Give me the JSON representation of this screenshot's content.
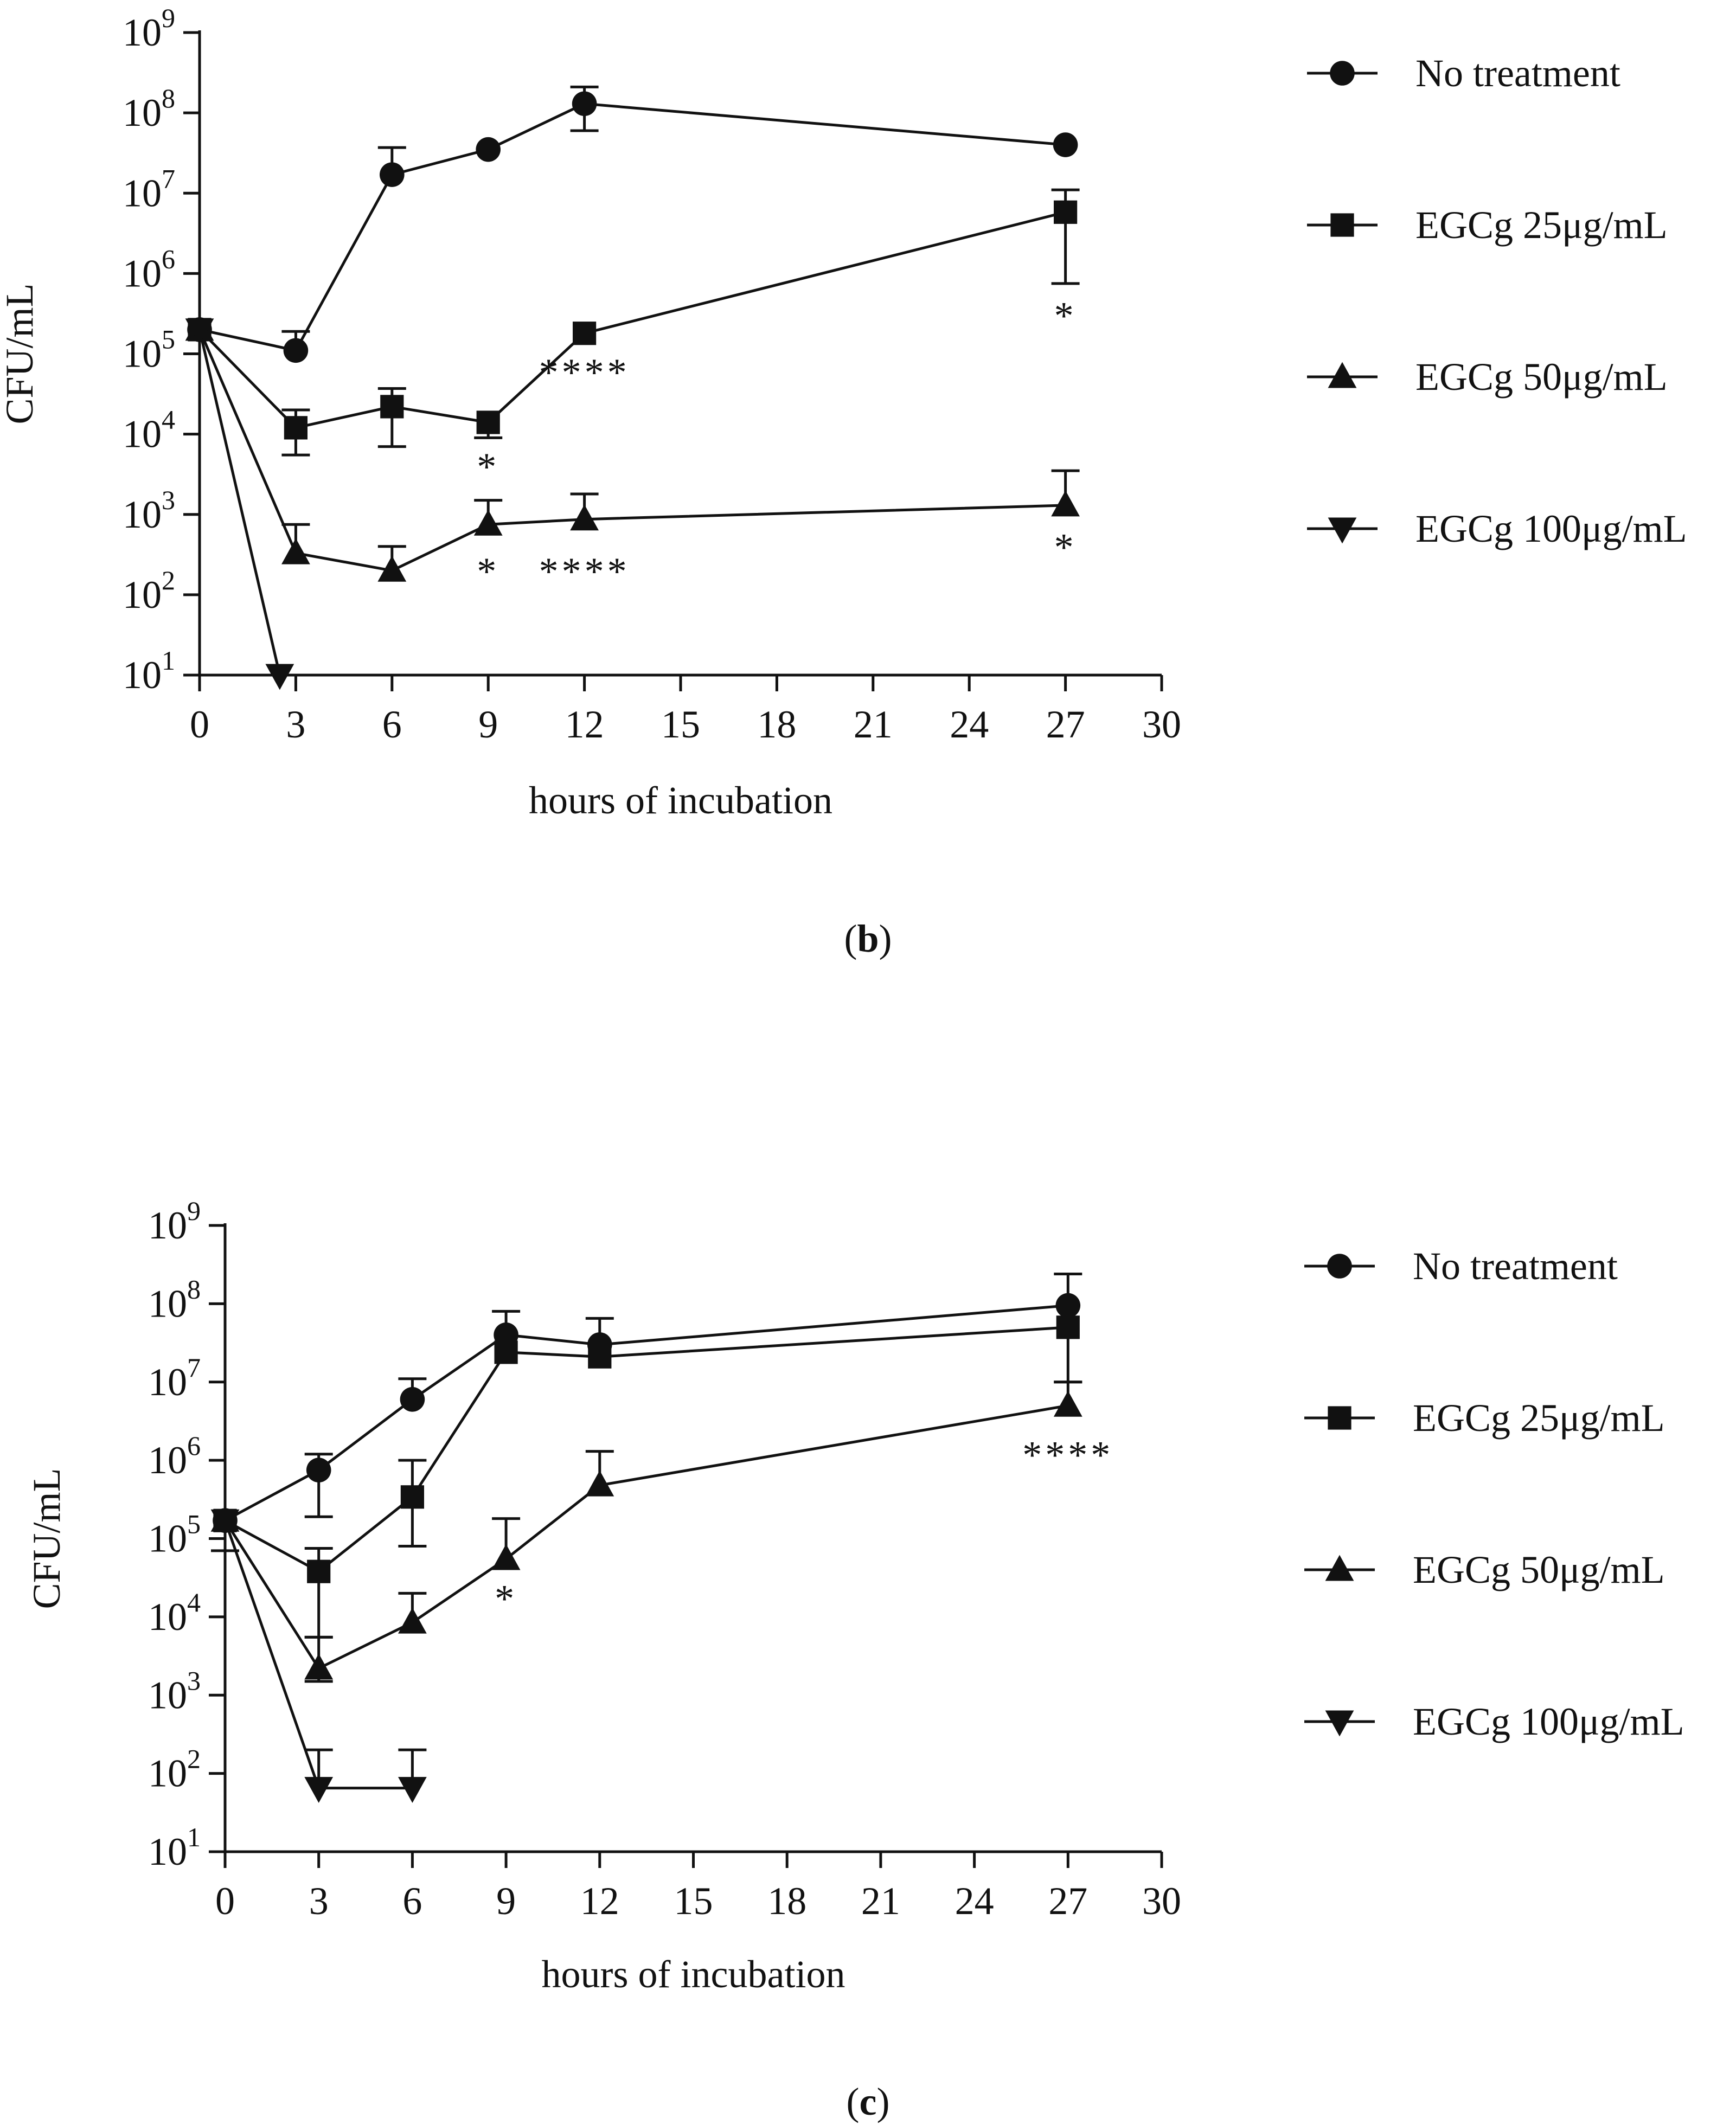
{
  "chart_data": [
    {
      "id": "b",
      "type": "line",
      "panel_label": "b",
      "xlabel": "hours of incubation",
      "ylabel": "CFU/mL",
      "yscale": "log",
      "xlim": [
        0,
        30
      ],
      "ylim": [
        10,
        1000000000
      ],
      "x_ticks": [
        "0",
        "3",
        "6",
        "9",
        "12",
        "15",
        "18",
        "21",
        "24",
        "27",
        "30"
      ],
      "y_tick_exponents": [
        "1",
        "2",
        "3",
        "4",
        "5",
        "6",
        "7",
        "8",
        "9"
      ],
      "y_tick_base": "10",
      "legend": [
        "No treatment",
        "EGCg 25μg/mL",
        "EGCg 50μg/mL",
        "EGCg 100μg/mL"
      ],
      "series": [
        {
          "name": "No treatment",
          "marker": "circle",
          "x": [
            0,
            3,
            6,
            9,
            12,
            27
          ],
          "y": [
            200000,
            110000,
            17000000,
            35000000,
            130000000,
            40000000
          ],
          "err_hi": [
            null,
            190000,
            37000000,
            null,
            210000000,
            null
          ],
          "err_lo": [
            null,
            null,
            null,
            null,
            60000000,
            null
          ]
        },
        {
          "name": "EGCg 25μg/mL",
          "marker": "square",
          "x": [
            0,
            3,
            6,
            9,
            12,
            27
          ],
          "y": [
            200000,
            12000,
            22000,
            14000,
            180000,
            5800000
          ],
          "err_hi": [
            null,
            20000,
            37000,
            null,
            null,
            11000000
          ],
          "err_lo": [
            null,
            5500,
            7000,
            9000,
            null,
            750000
          ]
        },
        {
          "name": "EGCg 50μg/mL",
          "marker": "triangle-up",
          "x": [
            0,
            3,
            6,
            9,
            12,
            27
          ],
          "y": [
            200000,
            330,
            200,
            750,
            870,
            1300
          ],
          "err_hi": [
            null,
            750,
            400,
            1500,
            1800,
            3500
          ],
          "err_lo": [
            null,
            null,
            null,
            null,
            null,
            null
          ]
        },
        {
          "name": "EGCg 100μg/mL",
          "marker": "triangle-down",
          "x": [
            0,
            2.5
          ],
          "y": [
            200000,
            10
          ],
          "err_hi": [
            null,
            null
          ],
          "err_lo": [
            null,
            null
          ]
        }
      ],
      "annotations": [
        {
          "text": "*",
          "x": 27,
          "y": 380000
        },
        {
          "text": "****",
          "x": 12,
          "y": 75000
        },
        {
          "text": "*",
          "x": 9,
          "y": 5000
        },
        {
          "text": "*",
          "x": 9,
          "y": 250
        },
        {
          "text": "****",
          "x": 12,
          "y": 250
        },
        {
          "text": "*",
          "x": 27,
          "y": 500
        }
      ]
    },
    {
      "id": "c",
      "type": "line",
      "panel_label": "c",
      "xlabel": "hours of incubation",
      "ylabel": "CFU/mL",
      "yscale": "log",
      "xlim": [
        0,
        30
      ],
      "ylim": [
        10,
        1000000000
      ],
      "x_ticks": [
        "0",
        "3",
        "6",
        "9",
        "12",
        "15",
        "18",
        "21",
        "24",
        "27",
        "30"
      ],
      "y_tick_exponents": [
        "1",
        "2",
        "3",
        "4",
        "5",
        "6",
        "7",
        "8",
        "9"
      ],
      "y_tick_base": "10",
      "legend": [
        "No treatment",
        "EGCg 25μg/mL",
        "EGCg 50μg/mL",
        "EGCg 100μg/mL"
      ],
      "series": [
        {
          "name": "No treatment",
          "marker": "circle",
          "x": [
            0,
            3,
            6,
            9,
            12,
            27
          ],
          "y": [
            170000,
            750000,
            6000000,
            40000000,
            30000000,
            95000000
          ],
          "err_hi": [
            null,
            1200000,
            11000000,
            80000000,
            65000000,
            240000000
          ],
          "err_lo": [
            70000,
            190000,
            null,
            null,
            null,
            null
          ]
        },
        {
          "name": "EGCg 25μg/mL",
          "marker": "square",
          "x": [
            0,
            3,
            6,
            9,
            12,
            27
          ],
          "y": [
            170000,
            38000,
            340000,
            24000000,
            21000000,
            50000000
          ],
          "err_hi": [
            null,
            75000,
            1000000,
            null,
            null,
            null
          ],
          "err_lo": [
            null,
            5500,
            80000,
            null,
            null,
            10000000
          ]
        },
        {
          "name": "EGCg 50μg/mL",
          "marker": "triangle-up",
          "x": [
            0,
            3,
            6,
            9,
            12,
            27
          ],
          "y": [
            170000,
            2200,
            8500,
            55000,
            480000,
            5000000
          ],
          "err_hi": [
            null,
            5500,
            20000,
            180000,
            1300000,
            10000000
          ],
          "err_lo": [
            null,
            1500,
            null,
            null,
            null,
            null
          ]
        },
        {
          "name": "EGCg 100μg/mL",
          "marker": "triangle-down",
          "x": [
            0,
            3,
            6
          ],
          "y": [
            170000,
            65,
            65
          ],
          "err_hi": [
            null,
            200,
            200
          ],
          "err_lo": [
            null,
            null,
            null
          ]
        }
      ],
      "annotations": [
        {
          "text": "****",
          "x": 27,
          "y": 1500000
        },
        {
          "text": "*",
          "x": 9,
          "y": 22000
        }
      ]
    }
  ]
}
